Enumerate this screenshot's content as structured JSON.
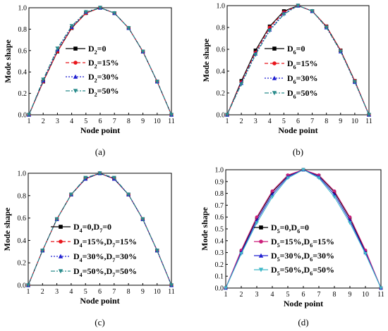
{
  "colors": {
    "black": "#000000",
    "red": "#e8151b",
    "blue": "#1f1fd0",
    "teal": "#2b8c8c",
    "mag": "#cc1f7a",
    "cyan": "#3fb8c8"
  },
  "chart_data": [
    {
      "panel_label": "(a)",
      "type": "line",
      "xlabel": "Node point",
      "ylabel": "Mode shape",
      "xlim": [
        1,
        11
      ],
      "ylim": [
        0.0,
        1.0
      ],
      "xticks": [
        "1",
        "2",
        "3",
        "4",
        "5",
        "6",
        "7",
        "8",
        "9",
        "10",
        "11"
      ],
      "yticks": [
        "0.0",
        "0.2",
        "0.4",
        "0.6",
        "0.8",
        "1.0"
      ],
      "x": [
        1,
        2,
        3,
        4,
        5,
        6,
        7,
        8,
        9,
        10,
        11
      ],
      "legend_position": "center",
      "series": [
        {
          "label_main": "D",
          "label_sub": "2",
          "label_rest": "=0",
          "color": "black",
          "dash": "",
          "marker": "square",
          "values": [
            0.0,
            0.31,
            0.59,
            0.81,
            0.95,
            1.0,
            0.95,
            0.81,
            0.59,
            0.31,
            0.0
          ]
        },
        {
          "label_main": "D",
          "label_sub": "2",
          "label_rest": "=15%",
          "color": "red",
          "dash": "5,3",
          "marker": "circle",
          "values": [
            0.0,
            0.31,
            0.59,
            0.81,
            0.95,
            1.0,
            0.95,
            0.81,
            0.59,
            0.31,
            0.0
          ]
        },
        {
          "label_main": "D",
          "label_sub": "2",
          "label_rest": "=30%",
          "color": "blue",
          "dash": "2,2",
          "marker": "triangle-up",
          "values": [
            0.0,
            0.32,
            0.61,
            0.82,
            0.96,
            1.0,
            0.95,
            0.81,
            0.59,
            0.31,
            0.0
          ]
        },
        {
          "label_main": "D",
          "label_sub": "2",
          "label_rest": "=50%",
          "color": "teal",
          "dash": "6,2,2,2",
          "marker": "triangle-down",
          "values": [
            0.0,
            0.33,
            0.62,
            0.83,
            0.96,
            1.0,
            0.95,
            0.81,
            0.59,
            0.31,
            0.0
          ]
        }
      ]
    },
    {
      "panel_label": "(b)",
      "type": "line",
      "xlabel": "Node point",
      "ylabel": "Mode shape",
      "xlim": [
        1,
        11
      ],
      "ylim": [
        0.0,
        1.0
      ],
      "xticks": [
        "1",
        "2",
        "3",
        "4",
        "5",
        "6",
        "7",
        "8",
        "9",
        "10",
        "11"
      ],
      "yticks": [
        "0.0",
        "0.2",
        "0.4",
        "0.6",
        "0.8",
        "1.0"
      ],
      "x": [
        1,
        2,
        3,
        4,
        5,
        6,
        7,
        8,
        9,
        10,
        11
      ],
      "legend_position": "center",
      "series": [
        {
          "label_main": "D",
          "label_sub": "6",
          "label_rest": "=0",
          "color": "black",
          "dash": "",
          "marker": "square",
          "values": [
            0.0,
            0.31,
            0.59,
            0.81,
            0.95,
            1.0,
            0.95,
            0.81,
            0.59,
            0.31,
            0.0
          ]
        },
        {
          "label_main": "D",
          "label_sub": "6",
          "label_rest": "=15%",
          "color": "red",
          "dash": "5,3",
          "marker": "circle",
          "values": [
            0.0,
            0.3,
            0.57,
            0.8,
            0.94,
            1.0,
            0.95,
            0.81,
            0.59,
            0.31,
            0.0
          ]
        },
        {
          "label_main": "D",
          "label_sub": "6",
          "label_rest": "=30%",
          "color": "blue",
          "dash": "2,2",
          "marker": "triangle-up",
          "values": [
            0.0,
            0.29,
            0.56,
            0.78,
            0.93,
            1.0,
            0.95,
            0.8,
            0.58,
            0.3,
            0.0
          ]
        },
        {
          "label_main": "D",
          "label_sub": "6",
          "label_rest": "=50%",
          "color": "teal",
          "dash": "6,2,2,2",
          "marker": "triangle-down",
          "values": [
            0.0,
            0.28,
            0.55,
            0.77,
            0.92,
            1.0,
            0.95,
            0.8,
            0.58,
            0.3,
            0.0
          ]
        }
      ]
    },
    {
      "panel_label": "(c)",
      "type": "line",
      "xlabel": "Node point",
      "ylabel": "Mode shape",
      "xlim": [
        1,
        11
      ],
      "ylim": [
        0.0,
        1.0
      ],
      "xticks": [
        "1",
        "2",
        "3",
        "4",
        "5",
        "6",
        "7",
        "8",
        "9",
        "10",
        "11"
      ],
      "yticks": [
        "0.0",
        "0.2",
        "0.4",
        "0.6",
        "0.8",
        "1.0"
      ],
      "x": [
        1,
        2,
        3,
        4,
        5,
        6,
        7,
        8,
        9,
        10,
        11
      ],
      "legend_position": "lower center",
      "series": [
        {
          "parts": [
            [
              "D",
              "4",
              "=0,"
            ],
            [
              "D",
              "7",
              "=0"
            ]
          ],
          "color": "black",
          "dash": "",
          "marker": "square",
          "values": [
            0.0,
            0.31,
            0.59,
            0.81,
            0.95,
            1.0,
            0.95,
            0.81,
            0.59,
            0.31,
            0.0
          ]
        },
        {
          "parts": [
            [
              "D",
              "4",
              "=15%,"
            ],
            [
              "D",
              "7",
              "=15%"
            ]
          ],
          "color": "red",
          "dash": "5,3",
          "marker": "circle",
          "values": [
            0.0,
            0.31,
            0.59,
            0.81,
            0.95,
            1.0,
            0.95,
            0.81,
            0.59,
            0.31,
            0.0
          ]
        },
        {
          "parts": [
            [
              "D",
              "4",
              "=30%,"
            ],
            [
              "D",
              "7",
              "=30%"
            ]
          ],
          "color": "blue",
          "dash": "2,2",
          "marker": "triangle-up",
          "values": [
            0.0,
            0.31,
            0.59,
            0.81,
            0.95,
            1.0,
            0.95,
            0.81,
            0.59,
            0.31,
            0.0
          ]
        },
        {
          "parts": [
            [
              "D",
              "4",
              "=50%,"
            ],
            [
              "D",
              "7",
              "=50%"
            ]
          ],
          "color": "teal",
          "dash": "6,2,2,2",
          "marker": "triangle-down",
          "values": [
            0.0,
            0.31,
            0.59,
            0.81,
            0.96,
            1.0,
            0.96,
            0.81,
            0.59,
            0.31,
            0.0
          ]
        }
      ]
    },
    {
      "panel_label": "(d)",
      "type": "line",
      "xlabel": "Node point",
      "ylabel": "Mode shape",
      "xlim": [
        1,
        11
      ],
      "ylim": [
        0.0,
        1.0
      ],
      "xticks": [
        "1",
        "2",
        "3",
        "4",
        "5",
        "6",
        "7",
        "8",
        "9",
        "10",
        "11"
      ],
      "yticks": [
        "0.0",
        "0.1",
        "0.2",
        "0.3",
        "0.4",
        "0.5",
        "0.6",
        "0.7",
        "0.8",
        "0.9",
        "1.0"
      ],
      "x": [
        1,
        2,
        3,
        4,
        5,
        6,
        7,
        8,
        9,
        10,
        11
      ],
      "legend_position": "lower center",
      "series": [
        {
          "parts": [
            [
              "D",
              "5",
              "=0,"
            ],
            [
              "D",
              "6",
              "=0"
            ]
          ],
          "color": "black",
          "dash": "",
          "marker": "square",
          "values": [
            0.0,
            0.31,
            0.59,
            0.81,
            0.95,
            1.0,
            0.95,
            0.81,
            0.59,
            0.31,
            0.0
          ]
        },
        {
          "parts": [
            [
              "D",
              "5",
              "=15%,"
            ],
            [
              "D",
              "6",
              "=15%"
            ]
          ],
          "color": "mag",
          "dash": "",
          "marker": "circle",
          "values": [
            0.0,
            0.32,
            0.6,
            0.82,
            0.955,
            1.0,
            0.955,
            0.82,
            0.6,
            0.32,
            0.0
          ]
        },
        {
          "parts": [
            [
              "D",
              "5",
              "=30%,"
            ],
            [
              "D",
              "6",
              "=30%"
            ]
          ],
          "color": "blue",
          "dash": "",
          "marker": "triangle-up",
          "values": [
            0.0,
            0.3,
            0.57,
            0.79,
            0.94,
            1.0,
            0.94,
            0.79,
            0.57,
            0.3,
            0.0
          ]
        },
        {
          "parts": [
            [
              "D",
              "5",
              "=50%,"
            ],
            [
              "D",
              "6",
              "=50%"
            ]
          ],
          "color": "cyan",
          "dash": "",
          "marker": "triangle-down",
          "values": [
            0.0,
            0.29,
            0.55,
            0.77,
            0.93,
            1.0,
            0.93,
            0.77,
            0.55,
            0.29,
            0.0
          ]
        }
      ]
    }
  ]
}
